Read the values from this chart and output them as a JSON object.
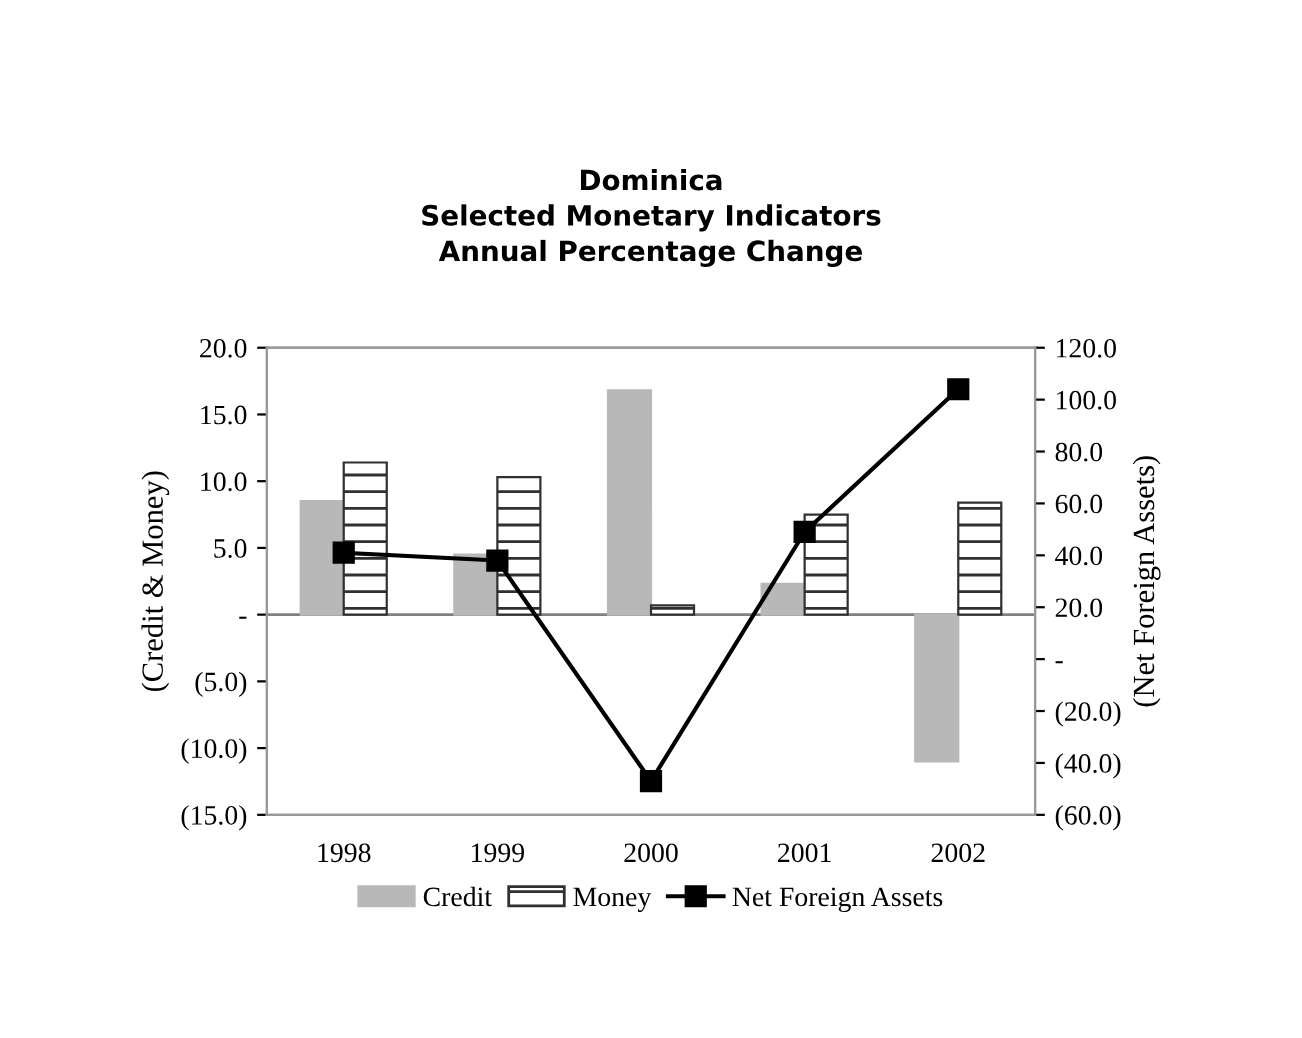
{
  "chart_data": {
    "type": "bar",
    "title": "Dominica\nSelected Monetary Indicators\nAnnual Percentage Change",
    "ylabel": "(Credit & Money)",
    "y2label": "(Net Foreign Assets)",
    "categories": [
      "1998",
      "1999",
      "2000",
      "2001",
      "2002"
    ],
    "series": [
      {
        "name": "Credit",
        "color": "#b8b8b8",
        "values": [
          8.5,
          4.5,
          16.8,
          2.3,
          -11.0
        ]
      },
      {
        "name": "Money",
        "color": "#303030",
        "values": [
          11.4,
          10.3,
          0.7,
          7.5,
          8.4
        ]
      },
      {
        "name": "Net Foreign Assets",
        "type": "line",
        "axis": "y2",
        "color": "#000000",
        "marker": "square",
        "values": [
          41,
          38,
          -47,
          49,
          104
        ]
      }
    ],
    "ylim": [
      -15,
      20
    ],
    "yticks": [
      {
        "value": -15,
        "label": "(15.0)"
      },
      {
        "value": -10,
        "label": "(10.0)"
      },
      {
        "value": -5,
        "label": "(5.0)"
      },
      {
        "value": 0,
        "label": "-"
      },
      {
        "value": 5,
        "label": "5.0"
      },
      {
        "value": 10,
        "label": "10.0"
      },
      {
        "value": 15,
        "label": "15.0"
      },
      {
        "value": 20,
        "label": "20.0"
      }
    ],
    "y2lim": [
      -60,
      120
    ],
    "y2ticks": [
      {
        "value": -60,
        "label": "(60.0)"
      },
      {
        "value": -40,
        "label": "(40.0)"
      },
      {
        "value": -20,
        "label": "(20.0)"
      },
      {
        "value": 0,
        "label": "-"
      },
      {
        "value": 20,
        "label": "20.0"
      },
      {
        "value": 40,
        "label": "40.0"
      },
      {
        "value": 60,
        "label": "60.0"
      },
      {
        "value": 80,
        "label": "80.0"
      },
      {
        "value": 100,
        "label": "100.0"
      },
      {
        "value": 120,
        "label": "120.0"
      }
    ],
    "ref_lines": [
      {
        "axis": "y",
        "value": 0,
        "color": "#808080"
      }
    ],
    "legend": "bottom",
    "grid": false
  }
}
